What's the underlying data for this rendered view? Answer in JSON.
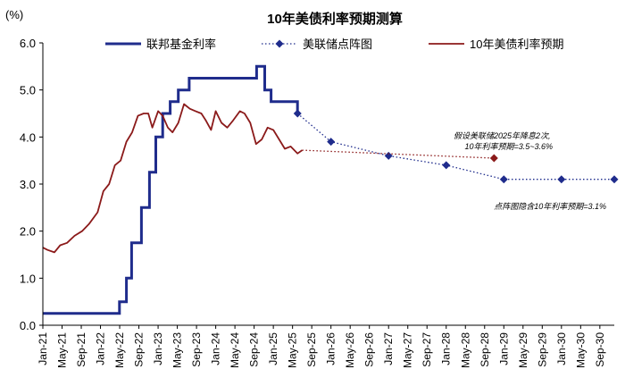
{
  "chart_data": {
    "type": "line",
    "title": "10年美债利率预期测算",
    "ylabel": "(%)",
    "ylim": [
      0.0,
      6.0
    ],
    "yticks": [
      "0.0",
      "1.0",
      "2.0",
      "3.0",
      "4.0",
      "5.0",
      "6.0"
    ],
    "x_range": [
      2021.0,
      2030.917
    ],
    "xticks": [
      "Jan-21",
      "May-21",
      "Sep-21",
      "Jan-22",
      "May-22",
      "Sep-22",
      "Jan-23",
      "May-23",
      "Sep-23",
      "Jan-24",
      "May-24",
      "Sep-24",
      "Jan-25",
      "May-25",
      "Sep-25",
      "Jan-26",
      "May-26",
      "Sep-26",
      "Jan-27",
      "May-27",
      "Sep-27",
      "Jan-28",
      "May-28",
      "Sep-28",
      "Jan-29",
      "May-29",
      "Sep-29",
      "Jan-30",
      "May-30",
      "Sep-30"
    ],
    "legend": [
      "联邦基金利率",
      "美联储点阵图",
      "10年美债利率预期"
    ],
    "series": [
      {
        "name": "联邦基金利率",
        "color": "#1f2c8c",
        "style": "step",
        "x": [
          2021.0,
          2022.21,
          2022.33,
          2022.45,
          2022.54,
          2022.71,
          2022.85,
          2022.96,
          2023.08,
          2023.21,
          2023.35,
          2023.54,
          2024.71,
          2024.85,
          2024.96,
          2025.42
        ],
        "y": [
          0.25,
          0.25,
          0.5,
          1.0,
          1.75,
          2.5,
          3.25,
          4.0,
          4.5,
          4.75,
          5.0,
          5.25,
          5.5,
          5.0,
          4.75,
          4.5
        ]
      },
      {
        "name": "美联储点阵图",
        "color": "#1f2c8c",
        "style": "dotted-marker",
        "x": [
          2025.42,
          2026.0,
          2027.0,
          2028.0,
          2029.0,
          2030.0,
          2030.917
        ],
        "y": [
          4.5,
          3.9,
          3.6,
          3.4,
          3.1,
          3.1,
          3.1
        ]
      },
      {
        "name": "10年美债利率预期",
        "color": "#8b1a1a",
        "style": "line",
        "x": [
          2021.0,
          2021.08,
          2021.2,
          2021.3,
          2021.42,
          2021.55,
          2021.68,
          2021.8,
          2021.95,
          2022.05,
          2022.15,
          2022.25,
          2022.35,
          2022.45,
          2022.55,
          2022.65,
          2022.75,
          2022.83,
          2022.9,
          2023.0,
          2023.08,
          2023.17,
          2023.25,
          2023.35,
          2023.45,
          2023.55,
          2023.65,
          2023.75,
          2023.83,
          2023.92,
          2024.0,
          2024.1,
          2024.2,
          2024.3,
          2024.42,
          2024.5,
          2024.6,
          2024.7,
          2024.8,
          2024.9,
          2025.0,
          2025.1,
          2025.2,
          2025.3,
          2025.42,
          2025.5
        ],
        "y": [
          1.65,
          1.6,
          1.55,
          1.7,
          1.75,
          1.9,
          2.0,
          2.15,
          2.4,
          2.85,
          3.0,
          3.4,
          3.5,
          3.9,
          4.1,
          4.45,
          4.5,
          4.5,
          4.2,
          4.55,
          4.45,
          4.2,
          4.1,
          4.3,
          4.7,
          4.6,
          4.55,
          4.5,
          4.35,
          4.15,
          4.55,
          4.3,
          4.2,
          4.35,
          4.55,
          4.5,
          4.3,
          3.85,
          3.95,
          4.2,
          4.15,
          3.95,
          3.75,
          3.8,
          3.65,
          3.72
        ]
      },
      {
        "name": "10年美债利率预期(延伸)",
        "color": "#8b1a1a",
        "style": "dotted-end-marker",
        "x": [
          2025.5,
          2028.83
        ],
        "y": [
          3.72,
          3.55
        ]
      }
    ],
    "annotations": [
      {
        "lines": [
          "假设美联储2025年降息2次,",
          "10年利率预期=3.5~3.6%"
        ]
      },
      {
        "lines": [
          "点阵图隐含10年利率预期=3.1%"
        ]
      }
    ]
  }
}
